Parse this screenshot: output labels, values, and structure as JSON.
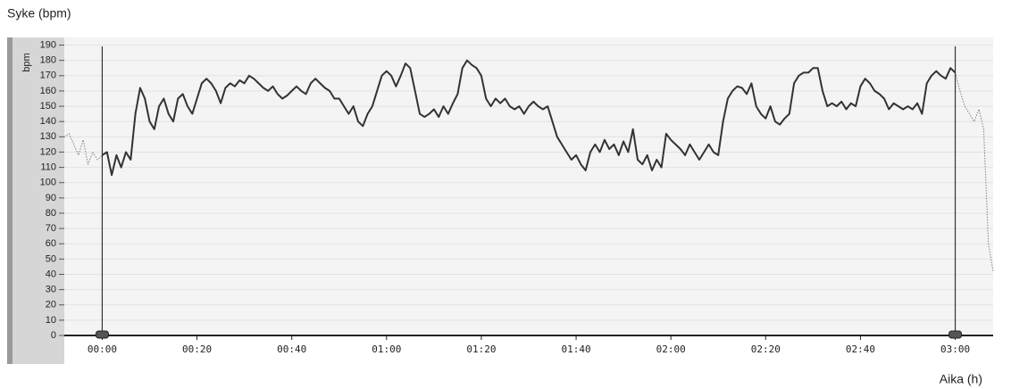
{
  "chart_data": {
    "type": "line",
    "title": "Syke (bpm)",
    "ylabel": "bpm",
    "xlabel": "Aika (h)",
    "xlim": [
      -8,
      188
    ],
    "ylim": [
      0,
      195
    ],
    "yticks": [
      0,
      10,
      20,
      30,
      40,
      50,
      60,
      70,
      80,
      90,
      100,
      110,
      120,
      130,
      140,
      150,
      160,
      170,
      180,
      190
    ],
    "xticks": [
      {
        "value": 0,
        "label": "00:00"
      },
      {
        "value": 20,
        "label": "00:20"
      },
      {
        "value": 40,
        "label": "00:40"
      },
      {
        "value": 60,
        "label": "01:00"
      },
      {
        "value": 80,
        "label": "01:20"
      },
      {
        "value": 100,
        "label": "01:40"
      },
      {
        "value": 120,
        "label": "02:00"
      },
      {
        "value": 140,
        "label": "02:20"
      },
      {
        "value": 160,
        "label": "02:40"
      },
      {
        "value": 180,
        "label": "03:00"
      }
    ],
    "grid": true,
    "range_markers": [
      0,
      180
    ],
    "series": [
      {
        "color": "#808080",
        "style": "dotted",
        "x": [
          -8,
          -7,
          -6,
          -5,
          -4,
          -3,
          -2,
          -1,
          0
        ],
        "values": [
          130,
          132,
          125,
          118,
          128,
          112,
          120,
          115,
          118
        ]
      },
      {
        "color": "#333333",
        "style": "solid",
        "x": [
          0,
          1,
          2,
          3,
          4,
          5,
          6,
          7,
          8,
          9,
          10,
          11,
          12,
          13,
          14,
          15,
          16,
          17,
          18,
          19,
          20,
          21,
          22,
          23,
          24,
          25,
          26,
          27,
          28,
          29,
          30,
          31,
          32,
          33,
          34,
          35,
          36,
          37,
          38,
          39,
          40,
          41,
          42,
          43,
          44,
          45,
          46,
          47,
          48,
          49,
          50,
          51,
          52,
          53,
          54,
          55,
          56,
          57,
          58,
          59,
          60,
          61,
          62,
          63,
          64,
          65,
          66,
          67,
          68,
          69,
          70,
          71,
          72,
          73,
          74,
          75,
          76,
          77,
          78,
          79,
          80,
          81,
          82,
          83,
          84,
          85,
          86,
          87,
          88,
          89,
          90,
          91,
          92,
          93,
          94,
          95,
          96,
          97,
          98,
          99,
          100,
          101,
          102,
          103,
          104,
          105,
          106,
          107,
          108,
          109,
          110,
          111,
          112,
          113,
          114,
          115,
          116,
          117,
          118,
          119,
          120,
          121,
          122,
          123,
          124,
          125,
          126,
          127,
          128,
          129,
          130,
          131,
          132,
          133,
          134,
          135,
          136,
          137,
          138,
          139,
          140,
          141,
          142,
          143,
          144,
          145,
          146,
          147,
          148,
          149,
          150,
          151,
          152,
          153,
          154,
          155,
          156,
          157,
          158,
          159,
          160,
          161,
          162,
          163,
          164,
          165,
          166,
          167,
          168,
          169,
          170,
          171,
          172,
          173,
          174,
          175,
          176,
          177,
          178,
          179,
          180
        ],
        "values": [
          118,
          120,
          105,
          118,
          110,
          120,
          115,
          145,
          162,
          155,
          140,
          135,
          150,
          155,
          145,
          140,
          155,
          158,
          150,
          145,
          155,
          165,
          168,
          165,
          160,
          152,
          162,
          165,
          163,
          167,
          165,
          170,
          168,
          165,
          162,
          160,
          163,
          158,
          155,
          157,
          160,
          163,
          160,
          158,
          165,
          168,
          165,
          162,
          160,
          155,
          155,
          150,
          145,
          150,
          140,
          137,
          145,
          150,
          160,
          170,
          173,
          170,
          163,
          170,
          178,
          175,
          160,
          145,
          143,
          145,
          148,
          143,
          150,
          145,
          152,
          158,
          175,
          180,
          177,
          175,
          170,
          155,
          150,
          155,
          152,
          155,
          150,
          148,
          150,
          145,
          150,
          153,
          150,
          148,
          150,
          140,
          130,
          125,
          120,
          115,
          118,
          112,
          108,
          120,
          125,
          120,
          128,
          122,
          125,
          118,
          127,
          120,
          135,
          115,
          112,
          118,
          108,
          115,
          110,
          132,
          128,
          125,
          122,
          118,
          125,
          120,
          115,
          120,
          125,
          120,
          118,
          140,
          155,
          160,
          163,
          162,
          158,
          165,
          150,
          145,
          142,
          150,
          140,
          138,
          142,
          145,
          165,
          170,
          172,
          172,
          175,
          175,
          160,
          150,
          152,
          150,
          153,
          148,
          152,
          150,
          163,
          168,
          165,
          160,
          158,
          155,
          148,
          152,
          150,
          148,
          150,
          148,
          152,
          145,
          165,
          170,
          173,
          170,
          168,
          175,
          172
        ]
      },
      {
        "color": "#808080",
        "style": "dotted",
        "x": [
          180,
          181,
          182,
          183,
          184,
          185,
          186,
          187,
          188
        ],
        "values": [
          172,
          160,
          150,
          145,
          140,
          148,
          135,
          60,
          42
        ]
      }
    ]
  }
}
